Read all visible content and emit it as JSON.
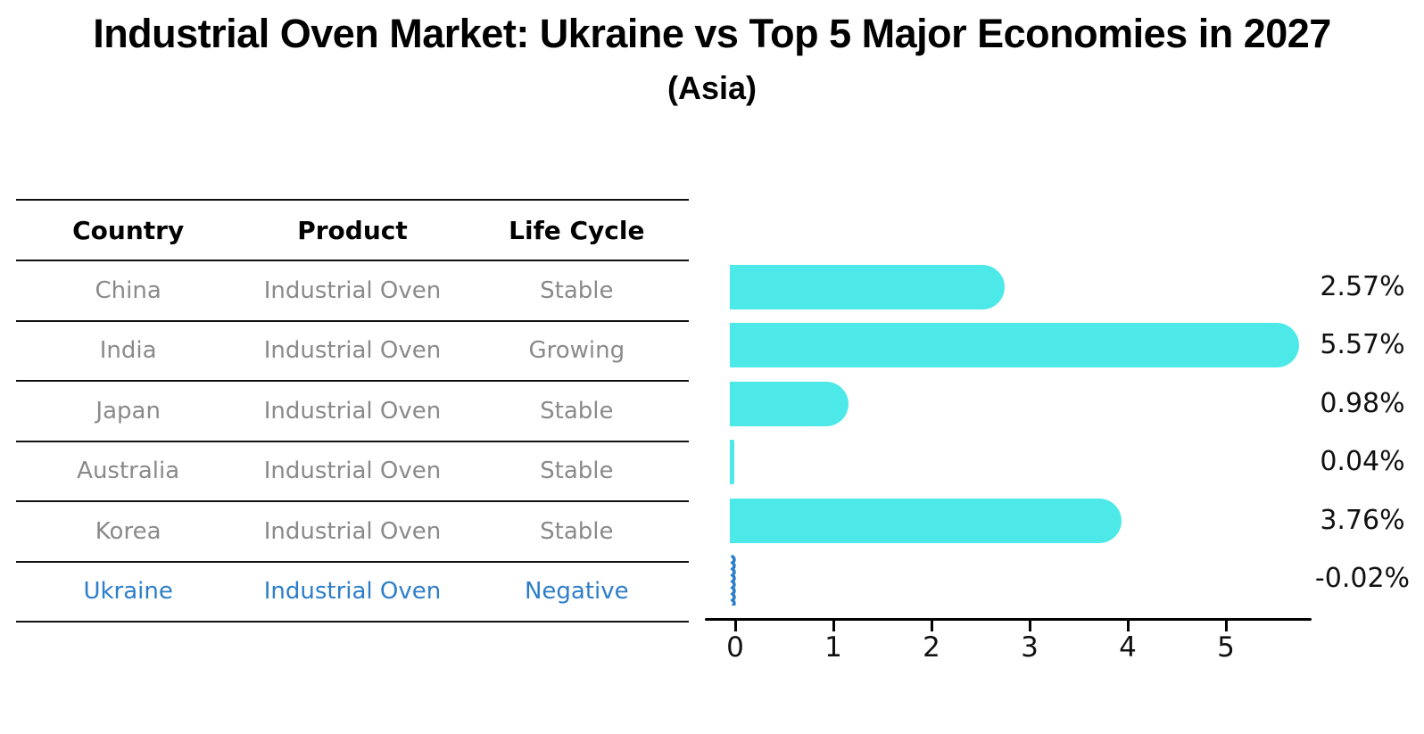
{
  "title": "Industrial Oven Market: Ukraine vs Top 5 Major Economies in 2027",
  "subtitle": "(Asia)",
  "table": {
    "headers": [
      "Country",
      "Product",
      "Life Cycle"
    ],
    "rows": [
      {
        "country": "China",
        "product": "Industrial Oven",
        "life_cycle": "Stable",
        "highlighted": false
      },
      {
        "country": "India",
        "product": "Industrial Oven",
        "life_cycle": "Growing",
        "highlighted": false
      },
      {
        "country": "Japan",
        "product": "Industrial Oven",
        "life_cycle": "Stable",
        "highlighted": false
      },
      {
        "country": "Australia",
        "product": "Industrial Oven",
        "life_cycle": "Stable",
        "highlighted": false
      },
      {
        "country": "Korea",
        "product": "Industrial Oven",
        "life_cycle": "Stable",
        "highlighted": false
      },
      {
        "country": "Ukraine",
        "product": "Industrial Oven",
        "life_cycle": "Negative",
        "highlighted": true
      }
    ]
  },
  "chart_data": {
    "type": "bar",
    "orientation": "horizontal",
    "title": "Industrial Oven Market: Ukraine vs Top 5 Major Economies in 2027",
    "subtitle": "(Asia)",
    "categories": [
      "China",
      "India",
      "Japan",
      "Australia",
      "Korea",
      "Ukraine"
    ],
    "values": [
      2.57,
      5.57,
      0.98,
      0.04,
      3.76,
      -0.02
    ],
    "value_labels": [
      "2.57%",
      "5.57%",
      "0.98%",
      "0.04%",
      "3.76%",
      "-0.02%"
    ],
    "x_ticks": [
      "0",
      "1",
      "2",
      "3",
      "4",
      "5"
    ],
    "xlim": [
      0,
      5.9
    ],
    "grid": false,
    "legend": false,
    "bar_color": "#4de9e9",
    "negative_bar_style": "blue-squiggle"
  },
  "colors": {
    "bar": "#4de9e9",
    "highlight_blue": "#2d7ec9",
    "muted_text": "#8a8a8a",
    "axis": "#000000",
    "background": "#ffffff"
  }
}
